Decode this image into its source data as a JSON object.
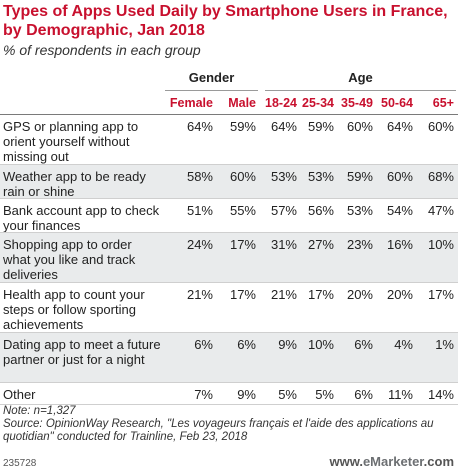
{
  "chart_data": {
    "type": "table",
    "title": "Types of Apps Used Daily by Smartphone Users in France, by Demographic, Jan 2018",
    "subtitle": "% of respondents in each group",
    "groups": [
      {
        "label": "Gender",
        "columns": [
          "Female",
          "Male"
        ]
      },
      {
        "label": "Age",
        "columns": [
          "18-24",
          "25-34",
          "35-49",
          "50-64",
          "65+"
        ]
      }
    ],
    "columns": [
      "Female",
      "Male",
      "18-24",
      "25-34",
      "35-49",
      "50-64",
      "65+"
    ],
    "rows": [
      {
        "label": "GPS or planning app to orient yourself without missing out",
        "values": [
          "64%",
          "59%",
          "64%",
          "59%",
          "60%",
          "64%",
          "60%"
        ]
      },
      {
        "label": "Weather app to be ready rain or shine",
        "values": [
          "58%",
          "60%",
          "53%",
          "53%",
          "59%",
          "60%",
          "68%"
        ]
      },
      {
        "label": "Bank account app to check your finances",
        "values": [
          "51%",
          "55%",
          "57%",
          "56%",
          "53%",
          "54%",
          "47%"
        ]
      },
      {
        "label": "Shopping app to order what you like and track deliveries",
        "values": [
          "24%",
          "17%",
          "31%",
          "27%",
          "23%",
          "16%",
          "10%"
        ]
      },
      {
        "label": "Health app to count your steps or follow sporting achievements",
        "values": [
          "21%",
          "17%",
          "21%",
          "17%",
          "20%",
          "20%",
          "17%"
        ]
      },
      {
        "label": "Dating app to meet a future partner or just for a night",
        "values": [
          "6%",
          "6%",
          "9%",
          "10%",
          "6%",
          "4%",
          "1%"
        ]
      },
      {
        "label": "Other",
        "values": [
          "7%",
          "9%",
          "5%",
          "5%",
          "6%",
          "11%",
          "14%"
        ]
      }
    ],
    "note": "Note: n=1,327",
    "source": "Source: OpinionWay Research, \"Les voyageurs français et l'aide des applications au quotidian\" conducted for Trainline, Feb 23, 2018",
    "chart_id": "235728",
    "brand": {
      "prefix": "www.",
      "name": "eMarketer",
      "suffix": ".com"
    },
    "colors": {
      "accent": "#c8102e",
      "shade": "#e9ebec"
    }
  }
}
